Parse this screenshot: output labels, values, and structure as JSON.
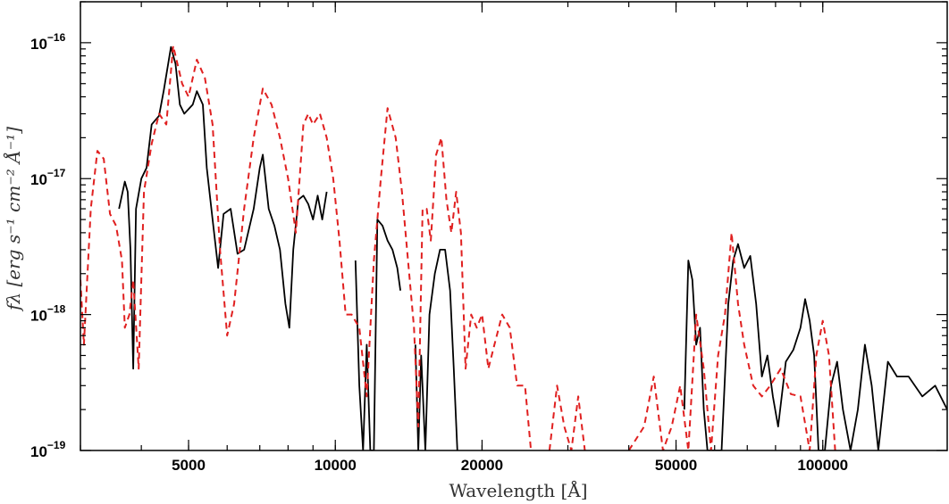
{
  "chart_data": {
    "type": "line",
    "title": "",
    "xlabel": "Wavelength [Å]",
    "ylabel": "fλ [erg s⁻¹ cm⁻² Å⁻¹]",
    "xscale": "log",
    "yscale": "log",
    "xlim": [
      3000,
      180000
    ],
    "ylim": [
      1e-19,
      2e-16
    ],
    "grid": false,
    "legend": "none",
    "x_ticks": [
      {
        "value": 5000,
        "label": "5000"
      },
      {
        "value": 10000,
        "label": "10000"
      },
      {
        "value": 20000,
        "label": "20000"
      },
      {
        "value": 50000,
        "label": "50000"
      },
      {
        "value": 100000,
        "label": "100000"
      }
    ],
    "y_ticks": [
      {
        "value": 1e-19,
        "label": "10",
        "exp": "−19"
      },
      {
        "value": 1e-18,
        "label": "10",
        "exp": "−18"
      },
      {
        "value": 1e-17,
        "label": "10",
        "exp": "−17"
      },
      {
        "value": 1e-16,
        "label": "10",
        "exp": "−16"
      }
    ],
    "series": [
      {
        "color": "#000000",
        "style": "solid",
        "segments": [
          [
            [
              3600,
              6e-18
            ],
            [
              3700,
              9.5e-18
            ],
            [
              3750,
              8e-18
            ],
            [
              3800,
              3e-18
            ],
            [
              3850,
              4e-19
            ],
            [
              3900,
              6e-18
            ],
            [
              4000,
              1e-17
            ],
            [
              4100,
              1.2e-17
            ],
            [
              4200,
              2.5e-17
            ],
            [
              4350,
              2.9e-17
            ],
            [
              4450,
              4.5e-17
            ],
            [
              4600,
              9.3e-17
            ],
            [
              4700,
              7e-17
            ],
            [
              4800,
              3.5e-17
            ],
            [
              4900,
              3e-17
            ],
            [
              5100,
              3.5e-17
            ],
            [
              5200,
              4.4e-17
            ],
            [
              5350,
              3.5e-17
            ],
            [
              5450,
              1.2e-17
            ],
            [
              5600,
              5e-18
            ],
            [
              5750,
              2.2e-18
            ],
            [
              5900,
              5.5e-18
            ],
            [
              6100,
              6e-18
            ],
            [
              6300,
              2.8e-18
            ],
            [
              6500,
              3e-18
            ],
            [
              6800,
              6e-18
            ],
            [
              7000,
              1.2e-17
            ],
            [
              7100,
              1.5e-17
            ],
            [
              7300,
              6e-18
            ],
            [
              7500,
              4.5e-18
            ],
            [
              7700,
              3e-18
            ],
            [
              7900,
              1.2e-18
            ],
            [
              8050,
              8e-19
            ],
            [
              8200,
              3e-18
            ],
            [
              8400,
              7e-18
            ],
            [
              8600,
              7.5e-18
            ],
            [
              8800,
              6.5e-18
            ],
            [
              9000,
              5e-18
            ],
            [
              9200,
              7.5e-18
            ],
            [
              9400,
              5e-18
            ],
            [
              9600,
              8e-18
            ]
          ],
          [
            [
              11000,
              2.5e-18
            ],
            [
              11200,
              3e-19
            ],
            [
              11400,
              1e-19
            ],
            [
              11600,
              6e-19
            ],
            [
              11800,
              1e-19
            ],
            [
              12000,
              1e-19
            ],
            [
              12200,
              5e-18
            ],
            [
              12500,
              4.5e-18
            ],
            [
              12800,
              3.5e-18
            ],
            [
              13100,
              3e-18
            ],
            [
              13400,
              2.2e-18
            ],
            [
              13600,
              1.5e-18
            ]
          ],
          [
            [
              14600,
              6e-19
            ],
            [
              14800,
              1e-19
            ],
            [
              15000,
              5e-19
            ],
            [
              15300,
              1e-19
            ],
            [
              15600,
              1e-18
            ],
            [
              16000,
              2e-18
            ],
            [
              16400,
              3e-18
            ],
            [
              16800,
              3e-18
            ],
            [
              17200,
              1.5e-18
            ],
            [
              17500,
              4e-19
            ],
            [
              17800,
              1e-19
            ]
          ],
          [
            [
              52000,
              2e-19
            ],
            [
              53000,
              2.5e-18
            ],
            [
              54000,
              1.8e-18
            ],
            [
              55000,
              6e-19
            ],
            [
              56000,
              8e-19
            ],
            [
              57000,
              2e-19
            ],
            [
              58000,
              1e-19
            ],
            [
              60000,
              1e-19
            ],
            [
              62000,
              1e-19
            ],
            [
              64000,
              1.2e-18
            ],
            [
              65500,
              2.5e-18
            ],
            [
              67000,
              3.3e-18
            ],
            [
              69000,
              2.2e-18
            ],
            [
              71000,
              2.7e-18
            ],
            [
              73000,
              1.2e-18
            ],
            [
              75000,
              3.5e-19
            ],
            [
              77000,
              5e-19
            ],
            [
              79000,
              2.5e-19
            ],
            [
              81000,
              1.5e-19
            ],
            [
              84000,
              4.5e-19
            ],
            [
              87000,
              5.5e-19
            ],
            [
              90000,
              8e-19
            ],
            [
              92000,
              1.3e-18
            ],
            [
              94000,
              9e-19
            ],
            [
              96000,
              5e-19
            ],
            [
              98000,
              1e-19
            ],
            [
              101000,
              1e-19
            ],
            [
              104000,
              3e-19
            ],
            [
              107000,
              4.5e-19
            ],
            [
              110000,
              2e-19
            ],
            [
              114000,
              1e-19
            ],
            [
              118000,
              2e-19
            ],
            [
              122000,
              6e-19
            ],
            [
              126000,
              3e-19
            ],
            [
              130000,
              1e-19
            ],
            [
              136000,
              4.5e-19
            ],
            [
              142000,
              3.5e-19
            ],
            [
              150000,
              3.5e-19
            ],
            [
              160000,
              2.5e-19
            ],
            [
              170000,
              3e-19
            ],
            [
              180000,
              2e-19
            ]
          ]
        ]
      },
      {
        "color": "#e02020",
        "style": "dashed",
        "segments": [
          [
            [
              3000,
              1.8e-18
            ],
            [
              3050,
              6e-19
            ],
            [
              3150,
              6e-18
            ],
            [
              3250,
              1.6e-17
            ],
            [
              3350,
              1.4e-17
            ],
            [
              3450,
              5.5e-18
            ],
            [
              3550,
              4.5e-18
            ],
            [
              3650,
              2.5e-18
            ],
            [
              3700,
              8e-19
            ],
            [
              3780,
              1e-18
            ],
            [
              3850,
              1.8e-18
            ],
            [
              3950,
              4e-19
            ],
            [
              4050,
              8e-18
            ],
            [
              4200,
              1.8e-17
            ],
            [
              4350,
              3e-17
            ],
            [
              4500,
              2.5e-17
            ],
            [
              4650,
              9.5e-17
            ],
            [
              4850,
              5e-17
            ],
            [
              5000,
              4e-17
            ],
            [
              5200,
              7.5e-17
            ],
            [
              5400,
              5.5e-17
            ],
            [
              5600,
              2.5e-17
            ],
            [
              5800,
              3e-18
            ],
            [
              6000,
              7e-19
            ],
            [
              6200,
              1.2e-18
            ],
            [
              6500,
              6e-18
            ],
            [
              6800,
              2e-17
            ],
            [
              7100,
              4.6e-17
            ],
            [
              7400,
              3.5e-17
            ],
            [
              7700,
              2e-17
            ],
            [
              8000,
              1e-17
            ],
            [
              8300,
              4e-18
            ],
            [
              8600,
              2.5e-17
            ],
            [
              8800,
              3e-17
            ],
            [
              9000,
              2.5e-17
            ],
            [
              9300,
              3e-17
            ],
            [
              9600,
              2e-17
            ],
            [
              9900,
              1e-17
            ],
            [
              10200,
              3.5e-18
            ],
            [
              10500,
              1e-18
            ],
            [
              10800,
              1e-18
            ],
            [
              11200,
              8e-19
            ],
            [
              11600,
              2.5e-19
            ],
            [
              12000,
              2.5e-18
            ],
            [
              12400,
              1e-17
            ],
            [
              12800,
              3.3e-17
            ],
            [
              13300,
              2e-17
            ],
            [
              13700,
              8e-18
            ],
            [
              14100,
              2.5e-18
            ],
            [
              14500,
              8e-19
            ],
            [
              14800,
              1.5e-19
            ],
            [
              15100,
              6e-18
            ],
            [
              15400,
              6e-18
            ],
            [
              15700,
              3.5e-18
            ],
            [
              16100,
              1.5e-17
            ],
            [
              16500,
              2e-17
            ],
            [
              16900,
              7e-18
            ],
            [
              17300,
              4e-18
            ],
            [
              17700,
              8e-18
            ],
            [
              18100,
              4e-18
            ],
            [
              18500,
              4e-19
            ],
            [
              19000,
              1e-18
            ],
            [
              19500,
              8e-19
            ],
            [
              20000,
              1e-18
            ],
            [
              20600,
              4e-19
            ],
            [
              21200,
              6e-19
            ],
            [
              22000,
              1e-18
            ],
            [
              22800,
              8e-19
            ],
            [
              23600,
              3e-19
            ],
            [
              24500,
              3e-19
            ],
            [
              25200,
              1e-19
            ]
          ],
          [
            [
              27500,
              1e-19
            ],
            [
              28500,
              3e-19
            ],
            [
              29500,
              1.5e-19
            ],
            [
              30500,
              1e-19
            ],
            [
              31500,
              2.5e-19
            ],
            [
              32500,
              1e-19
            ]
          ],
          [
            [
              40000,
              1e-19
            ],
            [
              43000,
              1.5e-19
            ],
            [
              45000,
              3.5e-19
            ],
            [
              47000,
              1e-19
            ],
            [
              49000,
              1.5e-19
            ],
            [
              51000,
              3e-19
            ],
            [
              53000,
              1e-19
            ],
            [
              55000,
              1e-18
            ],
            [
              57000,
              4e-19
            ],
            [
              59000,
              1e-19
            ],
            [
              61000,
              5e-19
            ],
            [
              63000,
              1e-18
            ],
            [
              65000,
              4e-18
            ],
            [
              67000,
              1.2e-18
            ],
            [
              69000,
              6e-19
            ],
            [
              72000,
              3e-19
            ],
            [
              75000,
              2.5e-19
            ],
            [
              78000,
              3e-19
            ],
            [
              82000,
              4e-19
            ],
            [
              86000,
              2.6e-19
            ],
            [
              90000,
              2.5e-19
            ],
            [
              94000,
              1e-19
            ],
            [
              97000,
              5e-19
            ],
            [
              100000,
              9e-19
            ],
            [
              103000,
              5e-19
            ],
            [
              106000,
              1e-19
            ]
          ]
        ]
      }
    ]
  }
}
